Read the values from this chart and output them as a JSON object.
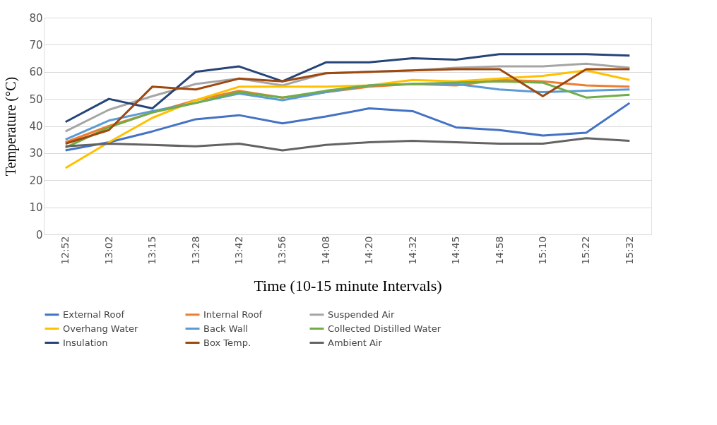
{
  "chart_data": {
    "type": "line",
    "xlabel": "Time (10-15 minute Intervals)",
    "ylabel": "Temperature (°C)",
    "categories": [
      "12:52",
      "13:02",
      "13:15",
      "13:28",
      "13:42",
      "13:56",
      "14:08",
      "14:20",
      "14:32",
      "14:45",
      "14:58",
      "15:10",
      "15:22",
      "15:32"
    ],
    "ylim": [
      0,
      80
    ],
    "yticks": [
      0,
      10,
      20,
      30,
      40,
      50,
      60,
      70,
      80
    ],
    "grid": "y",
    "legend": "bottom",
    "marker": "none",
    "line_style": "solid",
    "series": [
      {
        "name": "External Roof",
        "color": "#4472c4",
        "values": [
          31,
          34,
          38,
          42.5,
          44,
          41,
          43.5,
          46.5,
          45.5,
          39.5,
          38.5,
          36.5,
          37.5,
          48.5
        ]
      },
      {
        "name": "Internal Roof",
        "color": "#ed7d31",
        "values": [
          34,
          40,
          45,
          49.5,
          53,
          50.5,
          52.5,
          54.5,
          55.5,
          55,
          57,
          56.5,
          55,
          54.5
        ]
      },
      {
        "name": "Suspended Air",
        "color": "#a5a5a5",
        "values": [
          38,
          46,
          51,
          55.5,
          57.5,
          55,
          59.5,
          60,
          60.5,
          61.5,
          62,
          62,
          63,
          61.5
        ]
      },
      {
        "name": "Overhang Water",
        "color": "#ffc000",
        "values": [
          24.5,
          34,
          43,
          49.5,
          54.5,
          54.5,
          54.5,
          55,
          57,
          56.5,
          57.5,
          58.5,
          60.5,
          57
        ]
      },
      {
        "name": "Back Wall",
        "color": "#5b9bd5",
        "values": [
          35,
          42,
          45.5,
          48.5,
          52,
          49.5,
          52.5,
          55,
          55.5,
          55.5,
          53.5,
          52.5,
          53,
          53.5
        ]
      },
      {
        "name": "Collected Distilled Water",
        "color": "#70ad47",
        "values": [
          32,
          39.5,
          45,
          48.5,
          52.5,
          50.5,
          53,
          55,
          55.5,
          56,
          56.5,
          56,
          50.5,
          51.5
        ]
      },
      {
        "name": "Insulation",
        "color": "#264478",
        "values": [
          41.5,
          50,
          46.5,
          60,
          62,
          56.5,
          63.5,
          63.5,
          65,
          64.5,
          66.5,
          66.5,
          66.5,
          66
        ]
      },
      {
        "name": "Box Temp.",
        "color": "#9e480e",
        "values": [
          33.5,
          38.5,
          54.5,
          53.5,
          57.5,
          56.5,
          59.5,
          60,
          60.5,
          61,
          61,
          51,
          61,
          61
        ]
      },
      {
        "name": "Ambient Air",
        "color": "#636363",
        "values": [
          32.5,
          33.5,
          33,
          32.5,
          33.5,
          31,
          33,
          34,
          34.5,
          34,
          33.5,
          33.5,
          35.5,
          34.5
        ]
      }
    ]
  }
}
